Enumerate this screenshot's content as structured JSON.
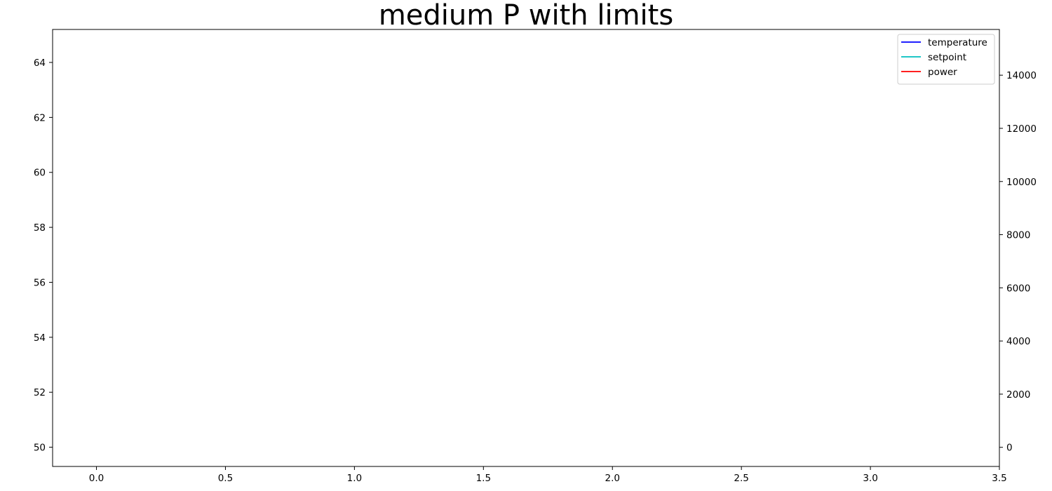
{
  "chart_data": {
    "type": "line",
    "title": "medium P with limits",
    "xlabel": "",
    "ylabel": "",
    "y2label": "",
    "xlim": [
      -0.17,
      3.5
    ],
    "ylim": [
      49.3,
      65.2
    ],
    "y2lim": [
      -720,
      15720
    ],
    "x_ticks": [
      0.0,
      0.5,
      1.0,
      1.5,
      2.0,
      2.5,
      3.0,
      3.5
    ],
    "x_tick_labels": [
      "0.0",
      "0.5",
      "1.0",
      "1.5",
      "2.0",
      "2.5",
      "3.0",
      "3.5"
    ],
    "y_ticks": [
      50,
      52,
      54,
      56,
      58,
      60,
      62,
      64
    ],
    "y_tick_labels": [
      "50",
      "52",
      "54",
      "56",
      "58",
      "60",
      "62",
      "64"
    ],
    "y2_ticks": [
      0,
      2000,
      4000,
      6000,
      8000,
      10000,
      12000,
      14000
    ],
    "y2_tick_labels": [
      "0",
      "2000",
      "4000",
      "6000",
      "8000",
      "10000",
      "12000",
      "14000"
    ],
    "grid": false,
    "legend_position": "top-right",
    "series": [
      {
        "name": "temperature",
        "axis": "left",
        "color": "#0000ff",
        "x": [],
        "y": []
      },
      {
        "name": "setpoint",
        "axis": "left",
        "color": "#00bfbf",
        "x": [],
        "y": []
      },
      {
        "name": "power",
        "axis": "right",
        "color": "#ff0000",
        "x": [],
        "y": []
      }
    ]
  }
}
